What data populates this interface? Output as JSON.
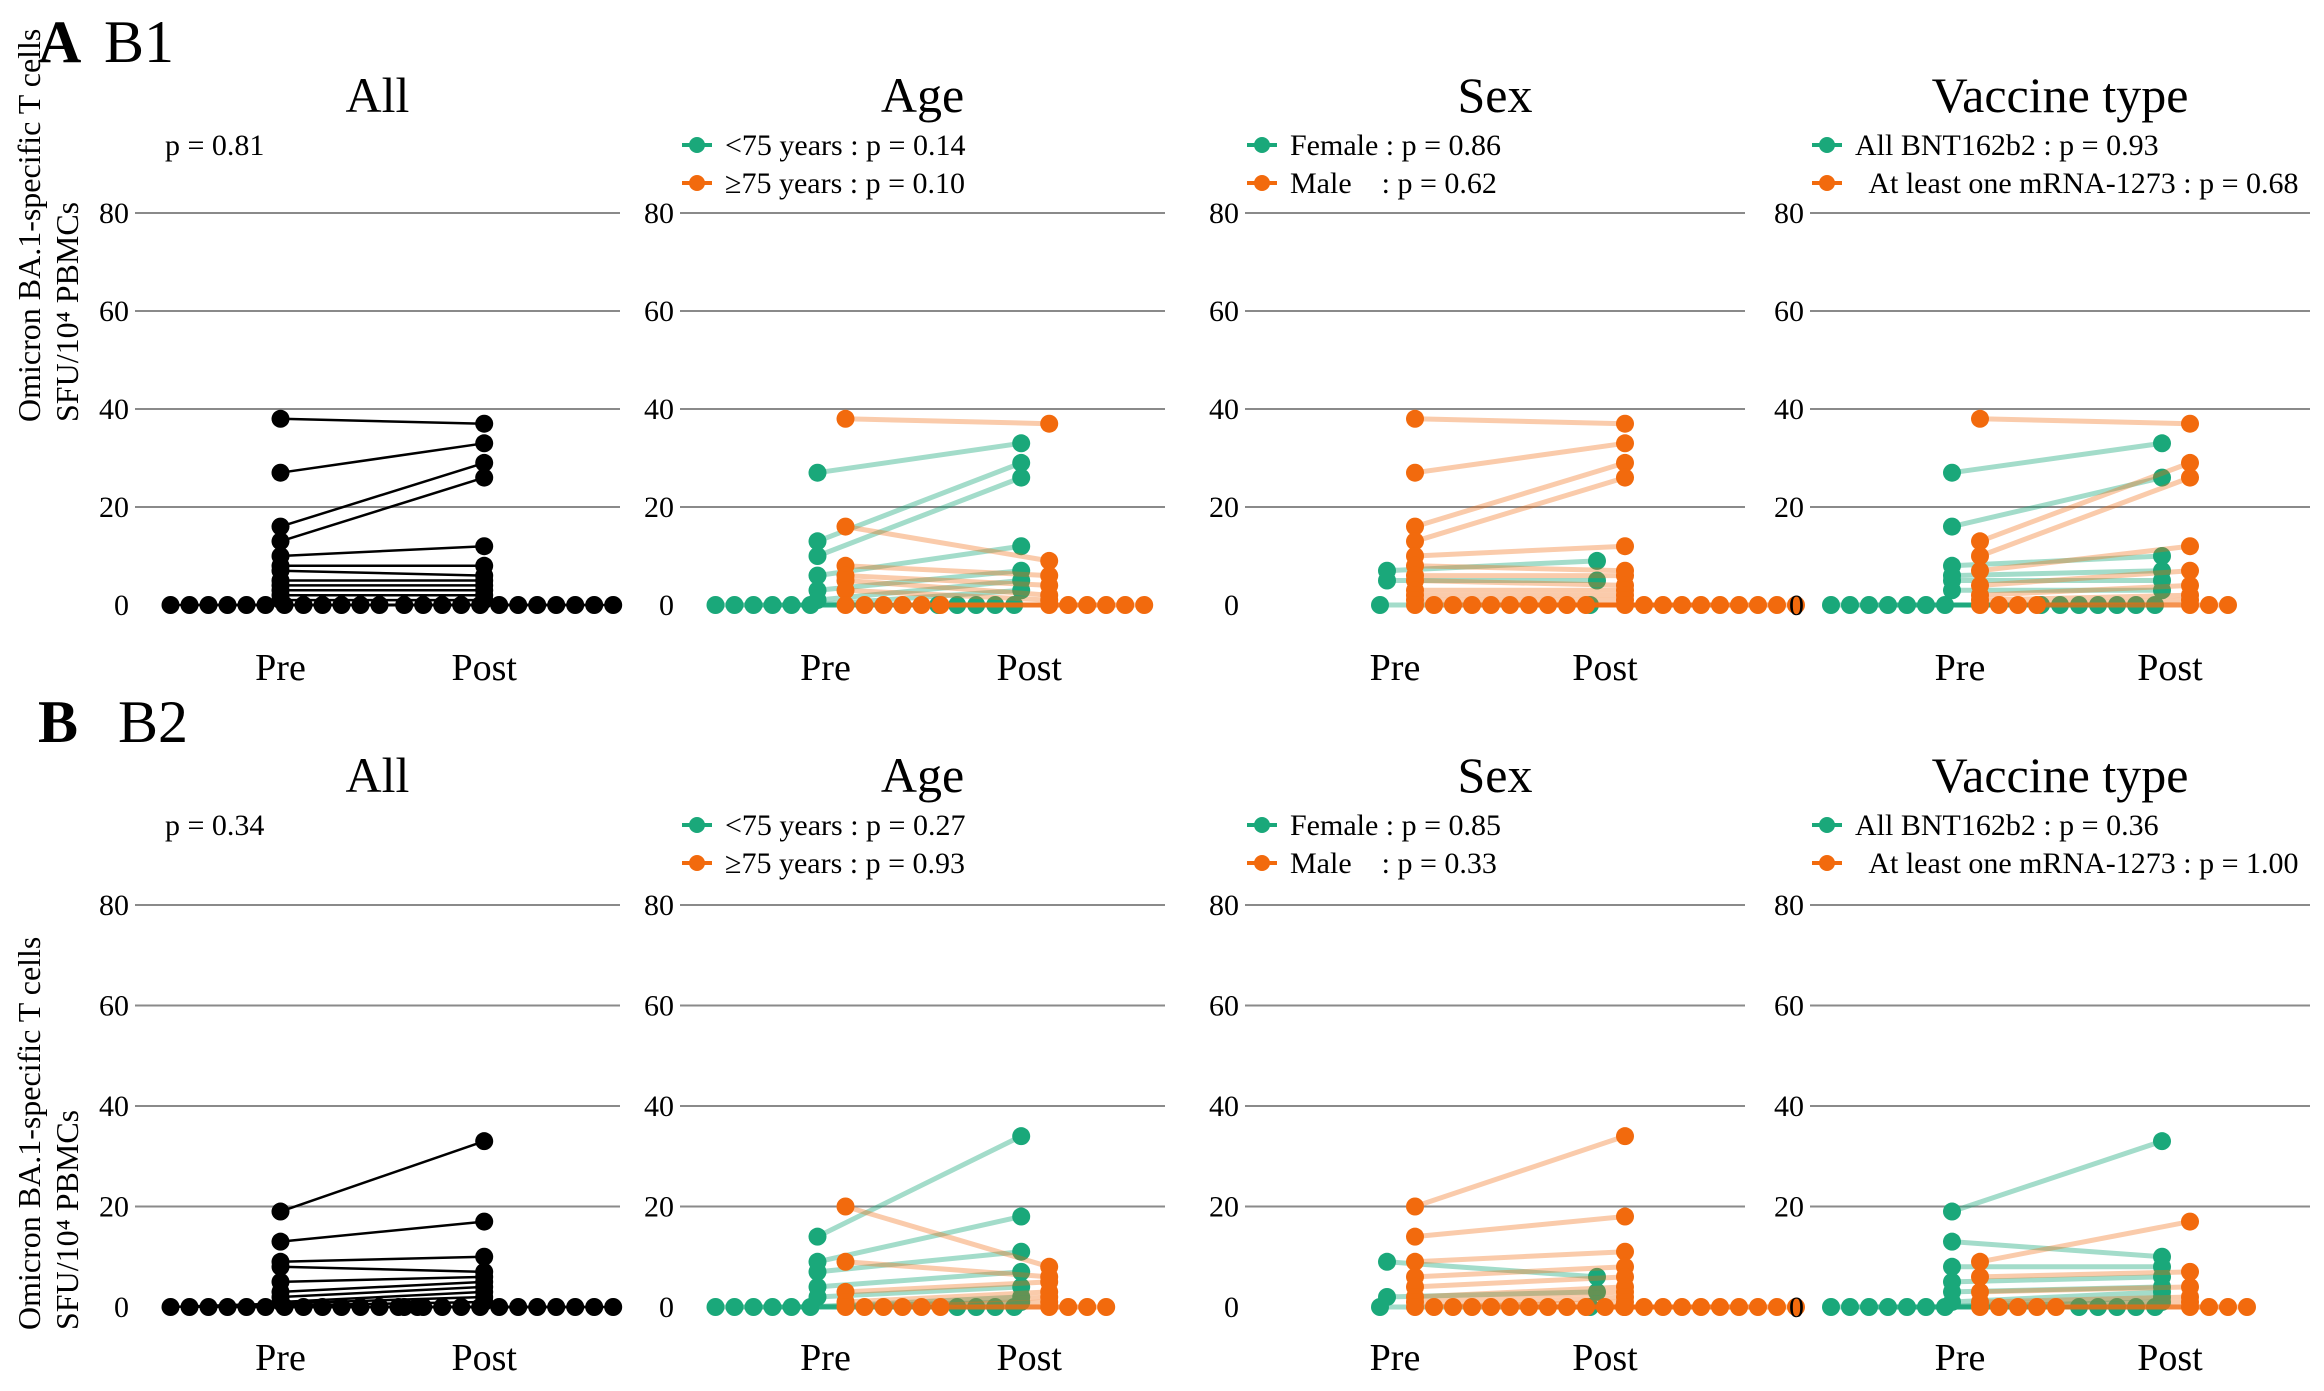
{
  "figure": {
    "rows": [
      {
        "letter": "A",
        "sublabel": "B1"
      },
      {
        "letter": "B",
        "sublabel": "B2"
      }
    ],
    "ylabel_line1": "Omicron BA.1-specific T cells",
    "ylabel_line2": "SFU/10⁴ PBMCs",
    "colors": {
      "black": "#000000",
      "green": "#1aa87a",
      "orange": "#f26a0d"
    }
  },
  "chart_data": [
    {
      "type": "scatter",
      "row": 0,
      "title": "All",
      "categories": [
        "Pre",
        "Post"
      ],
      "ylim": [
        0,
        80
      ],
      "yticks": [
        0,
        20,
        40,
        60,
        80
      ],
      "legend": [
        {
          "text": "p = 0.81",
          "color": "none"
        }
      ],
      "groups": [
        {
          "name": "All",
          "color": "black",
          "alpha": 1,
          "pre": [
            38,
            27,
            16,
            13,
            10,
            8,
            7,
            5,
            4,
            3,
            2,
            1,
            0,
            0,
            0,
            0,
            0,
            0,
            0,
            0,
            0,
            0,
            0,
            0
          ],
          "post": [
            37,
            33,
            29,
            26,
            12,
            8,
            6,
            5,
            4,
            3,
            2,
            1,
            0,
            0,
            0,
            0,
            0,
            0,
            0,
            0,
            0,
            0,
            0,
            0
          ]
        }
      ]
    },
    {
      "type": "scatter",
      "row": 0,
      "title": "Age",
      "categories": [
        "Pre",
        "Post"
      ],
      "ylim": [
        0,
        80
      ],
      "yticks": [
        0,
        20,
        40,
        60,
        80
      ],
      "legend": [
        {
          "text": "<75 years : p = 0.14",
          "color": "green"
        },
        {
          "text": "≥75 years : p = 0.10",
          "color": "orange"
        }
      ],
      "groups": [
        {
          "name": "<75 years",
          "color": "green",
          "alpha": 0.4,
          "pre": [
            27,
            13,
            10,
            6,
            3,
            1,
            0,
            0,
            0,
            0,
            0,
            0
          ],
          "post": [
            33,
            29,
            26,
            12,
            7,
            5,
            3,
            0,
            0,
            0,
            0,
            0
          ]
        },
        {
          "name": "≥75 years",
          "color": "orange",
          "alpha": 0.35,
          "pre": [
            38,
            16,
            8,
            6,
            5,
            3,
            0,
            0,
            0,
            0,
            0,
            0
          ],
          "post": [
            37,
            9,
            6,
            4,
            2,
            1,
            0,
            0,
            0,
            0,
            0,
            0
          ]
        }
      ]
    },
    {
      "type": "scatter",
      "row": 0,
      "title": "Sex",
      "categories": [
        "Pre",
        "Post"
      ],
      "ylim": [
        0,
        80
      ],
      "yticks": [
        0,
        20,
        40,
        60,
        80
      ],
      "legend": [
        {
          "text": "Female : p = 0.86",
          "color": "green"
        },
        {
          "text": "Male    : p = 0.62",
          "color": "orange"
        }
      ],
      "groups": [
        {
          "name": "Female",
          "color": "green",
          "alpha": 0.4,
          "pre": [
            7,
            5,
            0
          ],
          "post": [
            9,
            5,
            0
          ]
        },
        {
          "name": "Male",
          "color": "orange",
          "alpha": 0.35,
          "pre": [
            38,
            27,
            16,
            13,
            10,
            8,
            6,
            5,
            3,
            2,
            1,
            0,
            0,
            0,
            0,
            0,
            0,
            0,
            0,
            0,
            0
          ],
          "post": [
            37,
            33,
            29,
            26,
            12,
            7,
            6,
            4,
            3,
            2,
            1,
            0,
            0,
            0,
            0,
            0,
            0,
            0,
            0,
            0,
            0
          ]
        }
      ]
    },
    {
      "type": "scatter",
      "row": 0,
      "title": "Vaccine type",
      "categories": [
        "Pre",
        "Post"
      ],
      "ylim": [
        0,
        80
      ],
      "yticks": [
        0,
        20,
        40,
        60,
        80
      ],
      "legend": [
        {
          "text": "All BNT162b2 : p = 0.93",
          "color": "green"
        },
        {
          "text": "  At least one mRNA-1273 : p = 0.68",
          "color": "orange"
        }
      ],
      "groups": [
        {
          "name": "All BNT162b2",
          "color": "green",
          "alpha": 0.4,
          "pre": [
            27,
            16,
            8,
            6,
            5,
            3,
            0,
            0,
            0,
            0,
            0,
            0,
            0
          ],
          "post": [
            33,
            26,
            10,
            7,
            5,
            3,
            0,
            0,
            0,
            0,
            0,
            0,
            0
          ]
        },
        {
          "name": "At least one mRNA-1273",
          "color": "orange",
          "alpha": 0.35,
          "pre": [
            38,
            13,
            10,
            7,
            4,
            2,
            1,
            0,
            0,
            0,
            0
          ],
          "post": [
            37,
            29,
            26,
            12,
            7,
            4,
            2,
            1,
            0,
            0,
            0
          ]
        }
      ]
    },
    {
      "type": "scatter",
      "row": 1,
      "title": "All",
      "categories": [
        "Pre",
        "Post"
      ],
      "ylim": [
        0,
        80
      ],
      "yticks": [
        0,
        20,
        40,
        60,
        80
      ],
      "legend": [
        {
          "text": "p = 0.34",
          "color": "none"
        }
      ],
      "groups": [
        {
          "name": "All",
          "color": "black",
          "alpha": 1,
          "pre": [
            19,
            13,
            9,
            8,
            5,
            3,
            2,
            1,
            0,
            0,
            0,
            0,
            0,
            0,
            0,
            0,
            0,
            0,
            0,
            0,
            0,
            0
          ],
          "post": [
            33,
            17,
            10,
            7,
            6,
            5,
            4,
            3,
            2,
            1,
            0,
            0,
            0,
            0,
            0,
            0,
            0,
            0,
            0,
            0,
            0,
            0
          ]
        }
      ]
    },
    {
      "type": "scatter",
      "row": 1,
      "title": "Age",
      "categories": [
        "Pre",
        "Post"
      ],
      "ylim": [
        0,
        80
      ],
      "yticks": [
        0,
        20,
        40,
        60,
        80
      ],
      "legend": [
        {
          "text": "<75 years : p = 0.27",
          "color": "green"
        },
        {
          "text": "≥75 years : p = 0.93",
          "color": "orange"
        }
      ],
      "groups": [
        {
          "name": "<75 years",
          "color": "green",
          "alpha": 0.4,
          "pre": [
            14,
            9,
            7,
            4,
            2,
            0,
            0,
            0,
            0,
            0,
            0
          ],
          "post": [
            34,
            18,
            11,
            7,
            4,
            2,
            1,
            0,
            0,
            0,
            0
          ]
        },
        {
          "name": "≥75 years",
          "color": "orange",
          "alpha": 0.35,
          "pre": [
            20,
            9,
            3,
            1,
            0,
            0,
            0,
            0,
            0,
            0
          ],
          "post": [
            8,
            6,
            5,
            3,
            2,
            1,
            0,
            0,
            0,
            0
          ]
        }
      ]
    },
    {
      "type": "scatter",
      "row": 1,
      "title": "Sex",
      "categories": [
        "Pre",
        "Post"
      ],
      "ylim": [
        0,
        80
      ],
      "yticks": [
        0,
        20,
        40,
        60,
        80
      ],
      "legend": [
        {
          "text": "Female : p = 0.85",
          "color": "green"
        },
        {
          "text": "Male    : p = 0.33",
          "color": "orange"
        }
      ],
      "groups": [
        {
          "name": "Female",
          "color": "green",
          "alpha": 0.4,
          "pre": [
            9,
            2,
            0
          ],
          "post": [
            6,
            3,
            0
          ]
        },
        {
          "name": "Male",
          "color": "orange",
          "alpha": 0.35,
          "pre": [
            20,
            14,
            9,
            6,
            4,
            2,
            1,
            0,
            0,
            0,
            0,
            0,
            0,
            0,
            0,
            0,
            0,
            0,
            0
          ],
          "post": [
            34,
            18,
            11,
            8,
            6,
            4,
            3,
            2,
            1,
            0,
            0,
            0,
            0,
            0,
            0,
            0,
            0,
            0,
            0
          ]
        }
      ]
    },
    {
      "type": "scatter",
      "row": 1,
      "title": "Vaccine type",
      "categories": [
        "Pre",
        "Post"
      ],
      "ylim": [
        0,
        80
      ],
      "yticks": [
        0,
        20,
        40,
        60,
        80
      ],
      "legend": [
        {
          "text": "All BNT162b2 : p = 0.36",
          "color": "green"
        },
        {
          "text": "  At least one mRNA-1273 : p = 1.00",
          "color": "orange"
        }
      ],
      "groups": [
        {
          "name": "All BNT162b2",
          "color": "green",
          "alpha": 0.4,
          "pre": [
            19,
            13,
            8,
            5,
            3,
            1,
            0,
            0,
            0,
            0,
            0,
            0,
            0
          ],
          "post": [
            33,
            10,
            8,
            6,
            4,
            3,
            2,
            1,
            0,
            0,
            0,
            0,
            0
          ]
        },
        {
          "name": "At least one mRNA-1273",
          "color": "orange",
          "alpha": 0.35,
          "pre": [
            9,
            6,
            3,
            1,
            0,
            0,
            0,
            0,
            0
          ],
          "post": [
            17,
            7,
            4,
            2,
            1,
            0,
            0,
            0,
            0
          ]
        }
      ]
    }
  ]
}
